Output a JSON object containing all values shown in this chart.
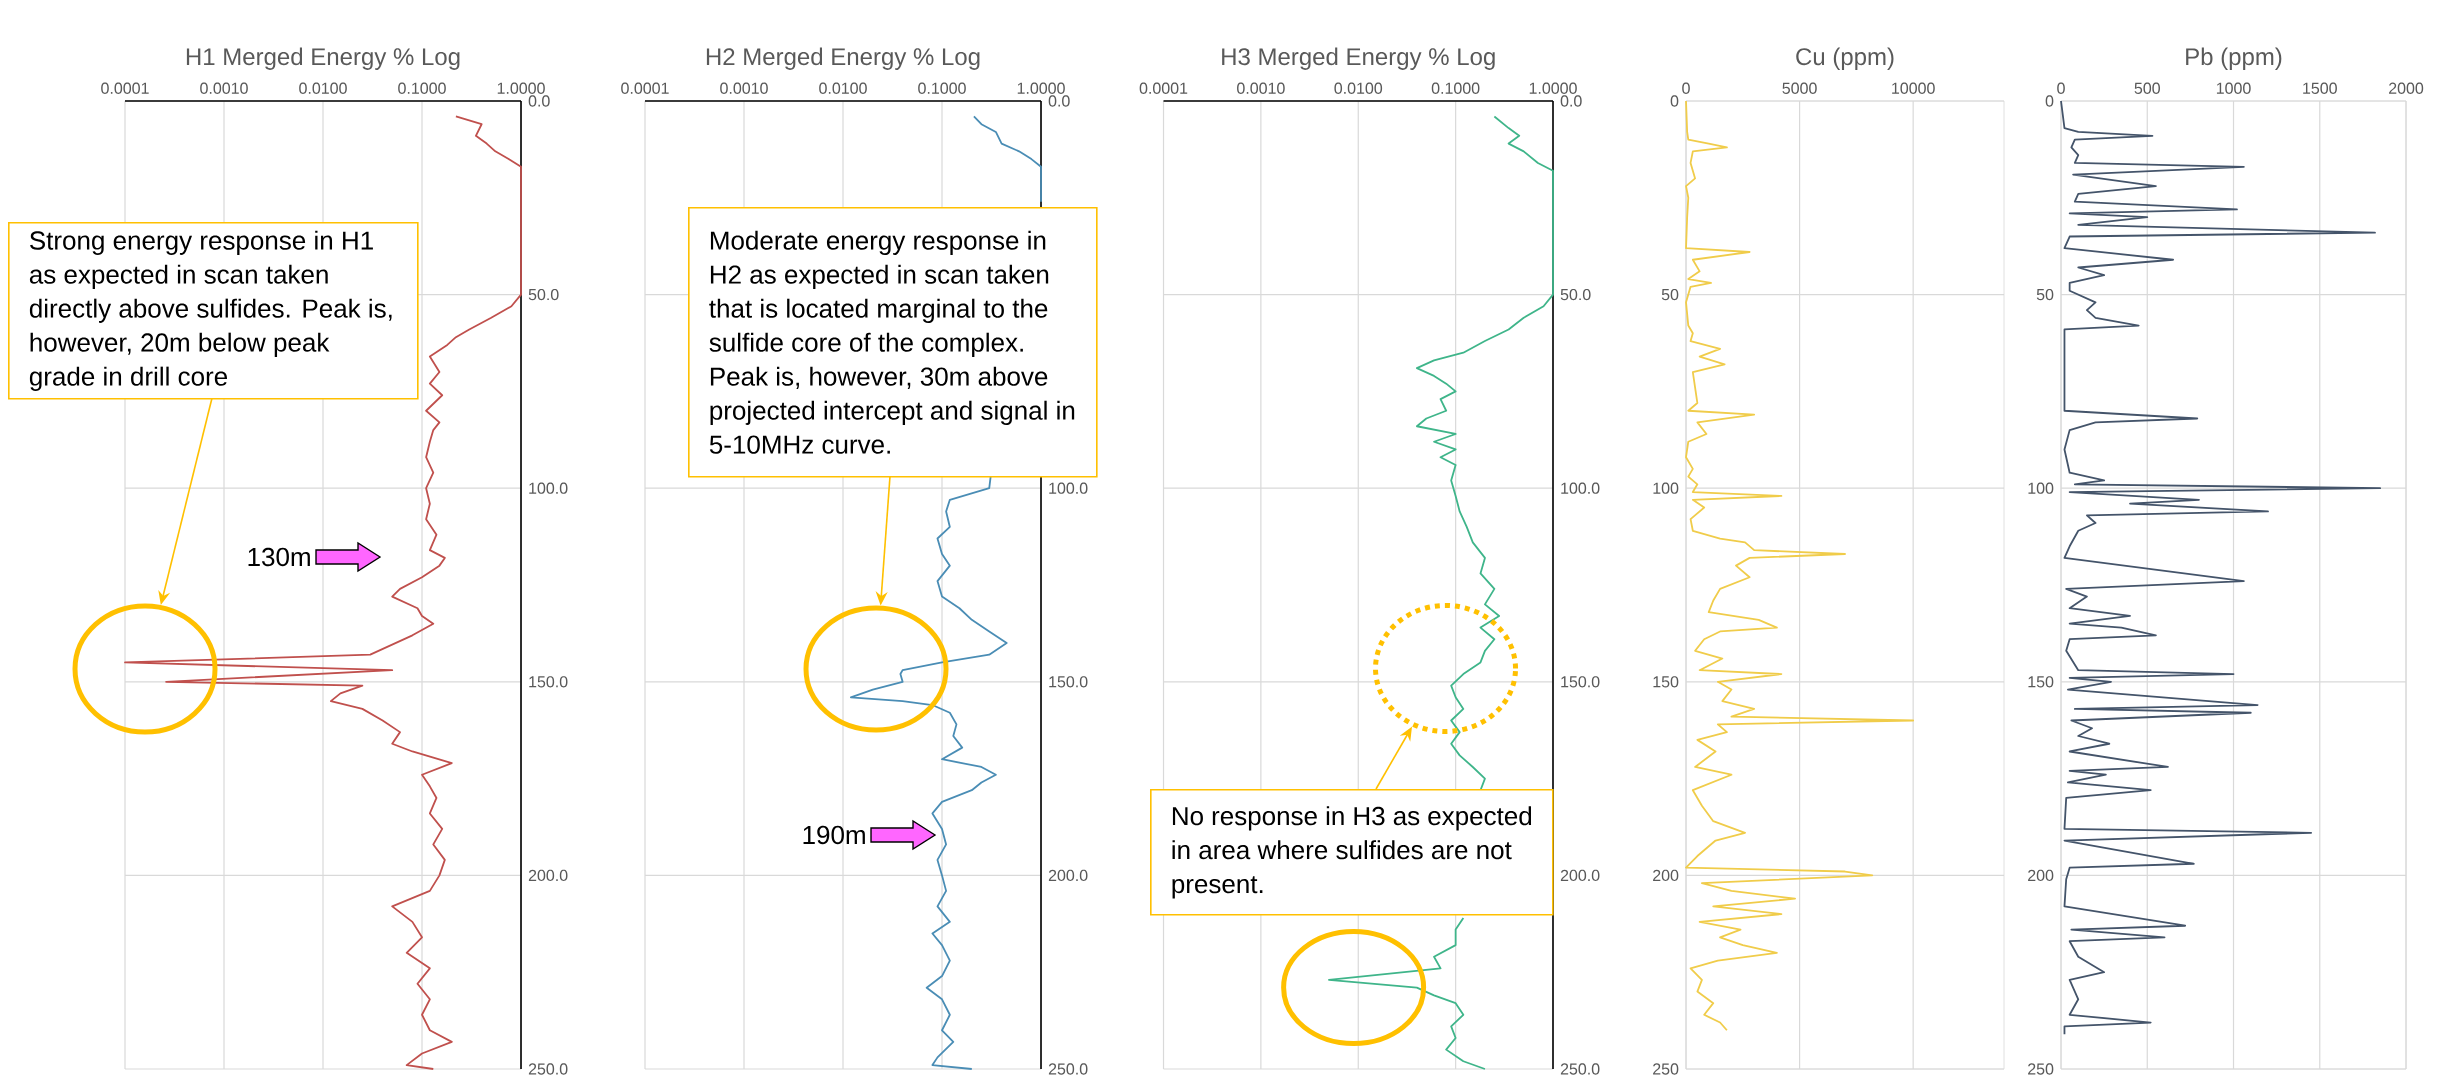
{
  "chart_data": [
    {
      "type": "line",
      "title": "H1 Merged Energy % Log",
      "color": "#c0504d",
      "log": "x",
      "grid": true,
      "x": [
        0.22,
        0.4,
        0.35,
        0.45,
        0.55,
        0.75,
        1,
        1,
        0.8,
        0.5,
        0.3,
        0.22,
        0.18,
        0.12,
        0.15,
        0.12,
        0.16,
        0.11,
        0.15,
        0.13,
        0.12,
        0.11,
        0.13,
        0.11,
        0.12,
        0.11,
        0.14,
        0.12,
        0.17,
        0.15,
        0.1,
        0.06,
        0.05,
        0.09,
        0.1,
        0.13,
        0.08,
        0.03,
        0.0001,
        0.05,
        0.00026,
        0.025,
        0.015,
        0.012,
        0.025,
        0.04,
        0.06,
        0.05,
        0.08,
        0.2,
        0.1,
        0.12,
        0.14,
        0.12,
        0.16,
        0.13,
        0.17,
        0.15,
        0.12,
        0.05,
        0.08,
        0.1,
        0.07,
        0.12,
        0.09,
        0.12,
        0.1,
        0.12,
        0.2,
        0.1,
        0.07,
        0.13
      ],
      "values": [
        4,
        6,
        9,
        11,
        13,
        15,
        17,
        50,
        53,
        56,
        59,
        61,
        63,
        66,
        70,
        73,
        76,
        80,
        83,
        85,
        88,
        92,
        96,
        100,
        104,
        108,
        112,
        116,
        118,
        120,
        123,
        126,
        128,
        131,
        133,
        135,
        138,
        143,
        145,
        147,
        150,
        151,
        153,
        155,
        157,
        160,
        163,
        166,
        168,
        171,
        174,
        177,
        180,
        184,
        188,
        192,
        196,
        200,
        204,
        208,
        212,
        216,
        220,
        224,
        228,
        232,
        236,
        240,
        243,
        246,
        249,
        250
      ],
      "xlim": [
        0.0001,
        1
      ],
      "ylim": [
        250,
        0
      ],
      "xticks": [
        0.0001,
        {
          "value": 0.001,
          "label": "0.0010"
        },
        {
          "value": 0.01,
          "label": "0.0100"
        },
        {
          "value": 0.1,
          "label": "0.1000"
        },
        {
          "value": 1,
          "label": "1.0000"
        }
      ],
      "yticks": [
        {
          "value": 0,
          "label": "0.0"
        },
        {
          "value": 50,
          "label": "50.0"
        },
        {
          "value": 100,
          "label": "100.0"
        },
        {
          "value": 150,
          "label": "150.0"
        },
        {
          "value": 200,
          "label": "200.0"
        },
        {
          "value": 250,
          "label": "250.0"
        }
      ],
      "annotations": [
        "Strong energy response in H1 as expected in scan taken directly above sulfides. Peak is, however, 20m below peak grade in drill core",
        "130m"
      ]
    },
    {
      "type": "line",
      "title": "H2 Merged Energy % Log",
      "color": "#4a8db5",
      "log": "x",
      "grid": true,
      "x": [
        0.21,
        0.25,
        0.35,
        0.4,
        0.6,
        0.8,
        1,
        1,
        null,
        0.31,
        0.3,
        0.12,
        0.11,
        0.12,
        0.09,
        0.1,
        0.12,
        0.09,
        0.1,
        0.15,
        0.2,
        0.3,
        0.45,
        0.3,
        0.1,
        0.04,
        0.038,
        0.04,
        0.02,
        0.012,
        0.04,
        0.08,
        0.12,
        0.14,
        0.13,
        0.16,
        0.1,
        0.25,
        0.35,
        0.25,
        0.2,
        0.1,
        0.08,
        0.1,
        0.11,
        0.09,
        0.1,
        0.11,
        0.09,
        0.12,
        0.08,
        0.1,
        0.12,
        0.1,
        0.07,
        0.1,
        0.12,
        0.1,
        0.13,
        0.09,
        0.08,
        0.2
      ],
      "values": [
        4,
        6,
        8,
        11,
        13,
        15,
        17,
        26,
        null,
        97,
        100,
        103,
        106,
        110,
        113,
        117,
        120,
        124,
        128,
        131,
        134,
        137,
        140,
        143,
        145,
        147,
        148,
        150,
        152,
        154,
        155,
        156,
        158,
        161,
        164,
        167,
        170,
        172,
        174,
        176,
        178,
        181,
        184,
        188,
        192,
        196,
        200,
        204,
        208,
        212,
        215,
        218,
        222,
        226,
        229,
        232,
        236,
        240,
        243,
        247,
        249,
        250
      ],
      "xlim": [
        0.0001,
        1
      ],
      "ylim": [
        250,
        0
      ],
      "xticks": [
        0.0001,
        {
          "value": 0.001,
          "label": "0.0010"
        },
        {
          "value": 0.01,
          "label": "0.0100"
        },
        {
          "value": 0.1,
          "label": "0.1000"
        },
        {
          "value": 1,
          "label": "1.0000"
        }
      ],
      "yticks": [
        {
          "value": 0,
          "label": "0.0"
        },
        {
          "value": 50,
          "label": null
        },
        {
          "value": 100,
          "label": "100.0"
        },
        {
          "value": 150,
          "label": "150.0"
        },
        {
          "value": 200,
          "label": "200.0"
        },
        {
          "value": 250,
          "label": "250.0"
        }
      ],
      "annotations": [
        "Moderate energy response in H2 as expected in scan taken that is located marginal to the sulfide core of the complex. Peak is, however, 30m above projected intercept and signal in 5-10MHz curve.",
        "190m"
      ]
    },
    {
      "type": "line",
      "title": "H3 Merged Energy % Log",
      "color": "#3fb58a",
      "log": "x",
      "grid": true,
      "x": [
        0.25,
        0.35,
        0.45,
        0.35,
        0.5,
        0.7,
        1,
        1,
        0.8,
        0.5,
        0.35,
        0.2,
        0.12,
        0.06,
        0.04,
        0.06,
        0.08,
        0.1,
        0.07,
        0.08,
        0.05,
        0.04,
        0.1,
        0.06,
        0.1,
        0.07,
        0.1,
        0.09,
        0.1,
        0.11,
        0.13,
        0.15,
        0.2,
        0.18,
        0.25,
        0.2,
        0.28,
        0.18,
        0.25,
        0.2,
        0.18,
        0.12,
        0.09,
        0.1,
        0.12,
        0.09,
        0.11,
        0.09,
        0.11,
        0.15,
        0.2,
        0.18,
        null,
        0.12,
        0.1,
        0.1,
        0.06,
        0.07,
        0.005,
        0.04,
        0.06,
        0.1,
        0.12,
        0.09,
        0.1,
        0.08,
        0.12,
        0.2
      ],
      "values": [
        4,
        7,
        9,
        11,
        13,
        16,
        18,
        50,
        53,
        56,
        59,
        62,
        65,
        67,
        69,
        71,
        73,
        75,
        77,
        80,
        82,
        84,
        86,
        88,
        90,
        92,
        94,
        98,
        102,
        106,
        110,
        114,
        118,
        122,
        126,
        130,
        133,
        136,
        139,
        142,
        145,
        148,
        151,
        154,
        157,
        160,
        163,
        166,
        169,
        172,
        175,
        178,
        null,
        211,
        214,
        218,
        221,
        224,
        227,
        229,
        231,
        233,
        236,
        239,
        242,
        245,
        248,
        250
      ],
      "xlim": [
        0.0001,
        1
      ],
      "ylim": [
        250,
        0
      ],
      "xticks": [
        0.0001,
        {
          "value": 0.001,
          "label": "0.0010"
        },
        {
          "value": 0.01,
          "label": "0.0100"
        },
        {
          "value": 0.1,
          "label": "0.1000"
        },
        {
          "value": 1,
          "label": "1.0000"
        }
      ],
      "yticks": [
        {
          "value": 0,
          "label": "0.0"
        },
        {
          "value": 50,
          "label": "50.0"
        },
        {
          "value": 100,
          "label": "100.0"
        },
        {
          "value": 150,
          "label": "150.0"
        },
        {
          "value": 200,
          "label": "200.0"
        },
        {
          "value": 250,
          "label": "250.0"
        }
      ],
      "annotations": [
        "No response in H3 as expected in area where sulfides are not present."
      ]
    },
    {
      "type": "line",
      "title": "Cu (ppm)",
      "color": "#f0cc4a",
      "grid": true,
      "x": [
        0,
        50,
        100,
        1000,
        1800,
        300,
        200,
        400,
        0,
        100,
        50,
        0,
        2800,
        300,
        600,
        100,
        1100,
        200,
        0,
        100,
        300,
        200,
        1500,
        600,
        1700,
        300,
        500,
        100,
        3000,
        500,
        900,
        100,
        0,
        300,
        100,
        500,
        300,
        4200,
        300,
        800,
        200,
        300,
        1500,
        2600,
        3000,
        7000,
        2800,
        2200,
        2800,
        1500,
        1200,
        1000,
        3200,
        4000,
        1500,
        800,
        400,
        1600,
        600,
        4200,
        1400,
        2000,
        1600,
        3000,
        2000,
        10000,
        1400,
        1800,
        500,
        1300,
        400,
        2000,
        300,
        700,
        1200,
        2600,
        1300,
        500,
        0,
        7000,
        8200,
        700,
        2000,
        4800,
        1200,
        4200,
        600,
        2400,
        1500,
        2500,
        4000,
        1400,
        200,
        700,
        500,
        1200,
        800,
        1500,
        1800
      ],
      "values": [
        0,
        8,
        10,
        11,
        12,
        13,
        16,
        20,
        22,
        25,
        30,
        38,
        39,
        41,
        44,
        46,
        47,
        48,
        52,
        58,
        60,
        62,
        64,
        66,
        68,
        70,
        78,
        80,
        81,
        83,
        86,
        88,
        92,
        95,
        97,
        99,
        101,
        102,
        103,
        105,
        108,
        111,
        113,
        114,
        116,
        117,
        118,
        120,
        123,
        126,
        129,
        132,
        134,
        136,
        137,
        139,
        142,
        144,
        147,
        148,
        150,
        152,
        155,
        157,
        159,
        160,
        161,
        163,
        165,
        168,
        172,
        174,
        178,
        182,
        186,
        189,
        191,
        195,
        198,
        199,
        200,
        202,
        204,
        206,
        208,
        210,
        212,
        214,
        216,
        218,
        220,
        222,
        224,
        227,
        230,
        233,
        236,
        238,
        240
      ],
      "xlim": [
        0,
        14000
      ],
      "ylim": [
        250,
        0
      ],
      "xticks": [
        0,
        5000,
        10000
      ],
      "yticks": [
        0,
        50,
        100,
        150,
        200,
        250
      ]
    },
    {
      "type": "line",
      "title": "Pb (ppm)",
      "color": "#44546a",
      "grid": true,
      "x": [
        0,
        20,
        100,
        530,
        80,
        60,
        100,
        80,
        1060,
        70,
        550,
        100,
        80,
        1020,
        50,
        500,
        100,
        1820,
        50,
        20,
        650,
        100,
        250,
        50,
        50,
        200,
        150,
        200,
        450,
        20,
        20,
        790,
        200,
        50,
        20,
        50,
        250,
        80,
        1850,
        50,
        800,
        400,
        1200,
        150,
        200,
        100,
        50,
        20,
        1060,
        30,
        150,
        50,
        400,
        50,
        350,
        550,
        50,
        30,
        100,
        1000,
        50,
        290,
        40,
        1140,
        80,
        1100,
        60,
        180,
        100,
        280,
        50,
        620,
        50,
        260,
        40,
        520,
        30,
        20,
        1450,
        20,
        770,
        50,
        30,
        20,
        720,
        60,
        600,
        50,
        100,
        250,
        50,
        100,
        50,
        520,
        20,
        20
      ],
      "values": [
        0,
        7,
        8,
        9,
        10,
        12,
        14,
        16,
        17,
        19,
        22,
        24,
        26,
        28,
        29,
        30,
        32,
        34,
        35,
        38,
        41,
        43,
        45,
        47,
        49,
        52,
        54,
        56,
        58,
        59,
        80,
        82,
        83,
        85,
        90,
        96,
        98,
        99,
        100,
        101,
        103,
        104,
        106,
        107,
        109,
        111,
        115,
        118,
        124,
        126,
        128,
        131,
        133,
        135,
        136,
        138,
        139,
        142,
        147,
        148,
        149,
        150,
        152,
        156,
        157,
        158,
        160,
        162,
        164,
        166,
        168,
        172,
        173,
        174,
        176,
        178,
        180,
        188,
        189,
        191,
        197,
        198,
        201,
        208,
        213,
        214,
        216,
        217,
        221,
        225,
        227,
        232,
        236,
        238,
        239,
        241
      ],
      "xlim": [
        0,
        2000
      ],
      "ylim": [
        250,
        0
      ],
      "xticks": [
        0,
        500,
        1000,
        1500,
        2000
      ],
      "yticks": [
        0,
        50,
        100,
        150,
        200,
        250
      ]
    }
  ]
}
